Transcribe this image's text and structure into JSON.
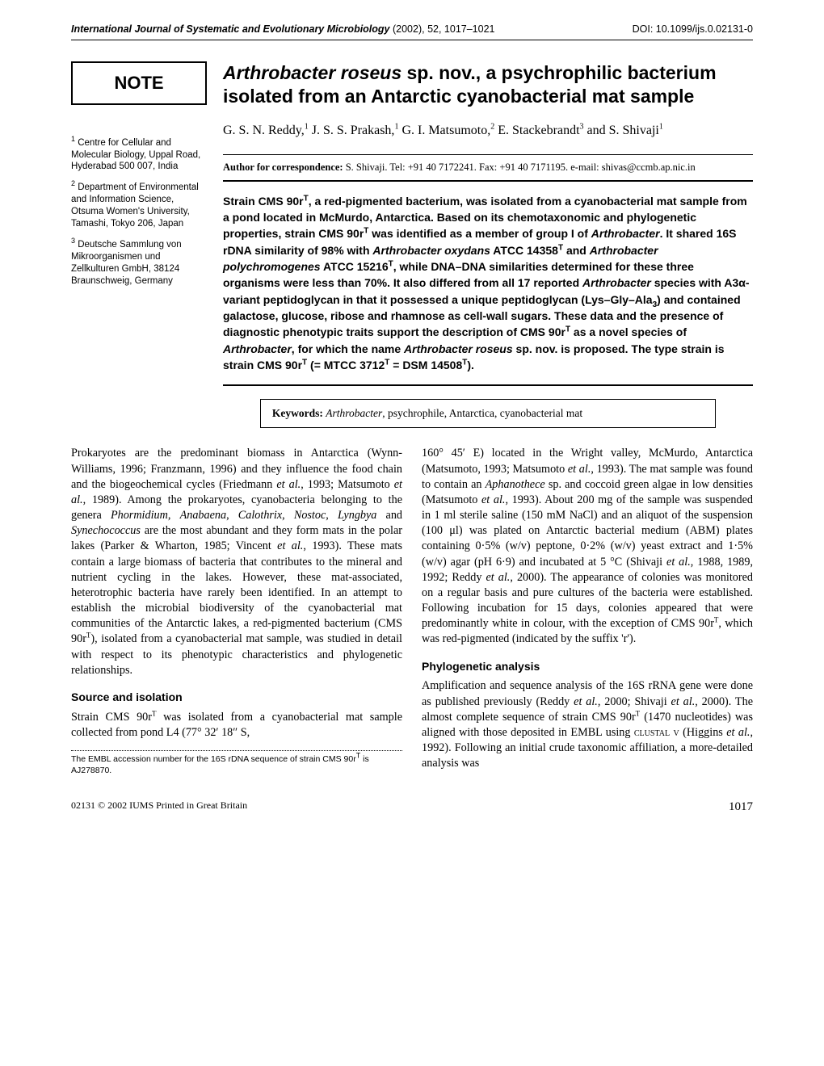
{
  "header": {
    "journal": "International Journal of Systematic and Evolutionary Microbiology",
    "year_pages": " (2002), 52, 1017–1021",
    "doi": "DOI: 10.1099/ijs.0.02131-0"
  },
  "note_label": "NOTE",
  "affiliations": [
    {
      "num": "1",
      "text": "Centre for Cellular and Molecular Biology, Uppal Road, Hyderabad 500 007, India"
    },
    {
      "num": "2",
      "text": "Department of Environmental and Information Science, Otsuma Women's University, Tamashi, Tokyo 206, Japan"
    },
    {
      "num": "3",
      "text": "Deutsche Sammlung von Mikroorganismen und Zellkulturen GmbH, 38124 Braunschweig, Germany"
    }
  ],
  "title_parts": {
    "species": "Arthrobacter roseus",
    "rest": " sp. nov., a psychrophilic bacterium isolated from an Antarctic cyanobacterial mat sample"
  },
  "authors_html": "G. S. N. Reddy,<sup>1</sup> J. S. S. Prakash,<sup>1</sup> G. I. Matsumoto,<sup>2</sup> E. Stackebrandt<sup>3</sup> and S. Shivaji<sup>1</sup>",
  "correspondence": {
    "label": "Author for correspondence:",
    "text": " S. Shivaji. Tel: +91 40 7172241. Fax: +91 40 7171195. e-mail: shivas@ccmb.ap.nic.in"
  },
  "abstract_html": "Strain CMS 90r<sup>T</sup>, a red-pigmented bacterium, was isolated from a cyanobacterial mat sample from a pond located in McMurdo, Antarctica. Based on its chemotaxonomic and phylogenetic properties, strain CMS 90r<sup>T</sup> was identified as a member of group I of <em>Arthrobacter</em>. It shared 16S rDNA similarity of 98% with <em>Arthrobacter oxydans</em> ATCC 14358<sup>T</sup> and <em>Arthrobacter polychromogenes</em> ATCC 15216<sup>T</sup>, while DNA–DNA similarities determined for these three organisms were less than 70%. It also differed from all 17 reported <em>Arthrobacter</em> species with A3α-variant peptidoglycan in that it possessed a unique peptidoglycan (Lys–Gly–Ala<sub>3</sub>) and contained galactose, glucose, ribose and rhamnose as cell-wall sugars. These data and the presence of diagnostic phenotypic traits support the description of CMS 90r<sup>T</sup> as a novel species of <em>Arthrobacter</em>, for which the name <em>Arthrobacter roseus</em> sp. nov. is proposed. The type strain is strain CMS 90r<sup>T</sup> (= MTCC 3712<sup>T</sup> = DSM 14508<sup>T</sup>).",
  "keywords": {
    "label": "Keywords:",
    "species": "Arthrobacter",
    "rest": ", psychrophile, Antarctica, cyanobacterial mat"
  },
  "body": {
    "para1_html": "Prokaryotes are the predominant biomass in Antarctica (Wynn-Williams, 1996; Franzmann, 1996) and they influence the food chain and the biogeochemical cycles (Friedmann <em>et al.</em>, 1993; Matsumoto <em>et al.</em>, 1989). Among the prokaryotes, cyanobacteria belonging to the genera <em>Phormidium</em>, <em>Anabaena</em>, <em>Calothrix</em>, <em>Nostoc</em>, <em>Lyngbya</em> and <em>Synechococcus</em> are the most abundant and they form mats in the polar lakes (Parker &amp; Wharton, 1985; Vincent <em>et al.</em>, 1993). These mats contain a large biomass of bacteria that contributes to the mineral and nutrient cycling in the lakes. However, these mat-associated, heterotrophic bacteria have rarely been identified. In an attempt to establish the microbial biodiversity of the cyanobacterial mat communities of the Antarctic lakes, a red-pigmented bacterium (CMS 90r<sup>T</sup>), isolated from a cyanobacterial mat sample, was studied in detail with respect to its phenotypic characteristics and phylogenetic relationships.",
    "sec1_head": "Source and isolation",
    "sec1_para_html": "Strain CMS 90r<sup>T</sup> was isolated from a cyanobacterial mat sample collected from pond L4 (77° 32′ 18″ S,",
    "footnote_html": "The EMBL accession number for the 16S rDNA sequence of strain CMS 90r<sup>T</sup> is AJ278870.",
    "col2_para_html": "160° 45′ E) located in the Wright valley, McMurdo, Antarctica (Matsumoto, 1993; Matsumoto <em>et al.</em>, 1993). The mat sample was found to contain an <em>Aphanothece</em> sp. and coccoid green algae in low densities (Matsumoto <em>et al.</em>, 1993). About 200 mg of the sample was suspended in 1 ml sterile saline (150 mM NaCl) and an aliquot of the suspension (100 μl) was plated on Antarctic bacterial medium (ABM) plates containing 0·5% (w/v) peptone, 0·2% (w/v) yeast extract and 1·5% (w/v) agar (pH 6·9) and incubated at 5 °C (Shivaji <em>et al.</em>, 1988, 1989, 1992; Reddy <em>et al.</em>, 2000). The appearance of colonies was monitored on a regular basis and pure cultures of the bacteria were established. Following incubation for 15 days, colonies appeared that were predominantly white in colour, with the exception of CMS 90r<sup>T</sup>, which was red-pigmented (indicated by the suffix 'r').",
    "sec2_head": "Phylogenetic analysis",
    "sec2_para_html": "Amplification and sequence analysis of the 16S rRNA gene were done as published previously (Reddy <em>et al.</em>, 2000; Shivaji <em>et al.</em>, 2000). The almost complete sequence of strain CMS 90r<sup>T</sup> (1470 nucleotides) was aligned with those deposited in EMBL using <span class=\"sc\">clustal v</span> (Higgins <em>et al.</em>, 1992). Following an initial crude taxonomic affiliation, a more-detailed analysis was"
  },
  "footer": {
    "left": "02131 © 2002 IUMS   Printed in Great Britain",
    "page": "1017"
  }
}
